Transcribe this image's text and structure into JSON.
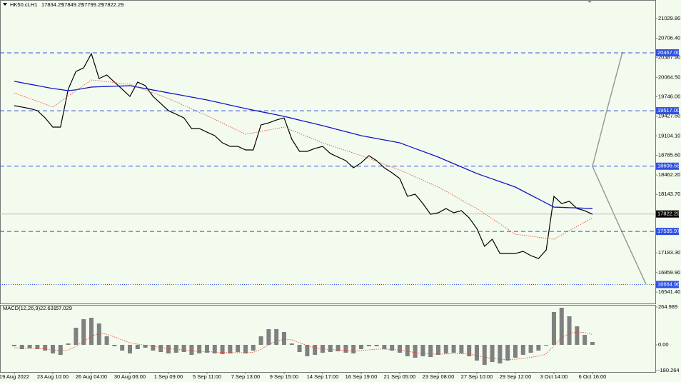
{
  "chart_data": [
    {
      "type": "line",
      "header": {
        "symbol": "HK50.cLH1",
        "open": 17834.29,
        "high": 17849.29,
        "low": 17799.29,
        "close": 17822.29
      },
      "categories": [
        "19 Aug 2022",
        null,
        null,
        null,
        null,
        "23 Aug 10:00",
        null,
        null,
        null,
        null,
        "26 Aug 04:00",
        null,
        null,
        null,
        null,
        "30 Aug 06:00",
        null,
        null,
        null,
        null,
        "1 Sep 09:00",
        null,
        null,
        null,
        null,
        "5 Sep 11:00",
        null,
        null,
        null,
        null,
        "7 Sep 13:00",
        null,
        null,
        null,
        null,
        "9 Sep 15:00",
        null,
        null,
        null,
        null,
        "14 Sep 17:00",
        null,
        null,
        null,
        null,
        "16 Sep 19:00",
        null,
        null,
        null,
        null,
        "21 Sep 05:00",
        null,
        null,
        null,
        null,
        "23 Sep 08:00",
        null,
        null,
        null,
        null,
        "27 Sep 10:00",
        null,
        null,
        null,
        null,
        "29 Sep 12:00",
        null,
        null,
        null,
        null,
        "3 Oct 14:00",
        null,
        null,
        null,
        null,
        "6 Oct 16:00"
      ],
      "xlim": [
        -1.85,
        83.15
      ],
      "series": [
        {
          "color": "#000000",
          "values": [
            19600,
            19577,
            19553,
            19518,
            19400,
            19248,
            19248,
            19870,
            20162,
            20221,
            20455,
            20045,
            20104,
            19986,
            19870,
            19752,
            19986,
            19928,
            19752,
            19635,
            19518,
            19459,
            19400,
            19225,
            19225,
            19166,
            19108,
            18990,
            18932,
            18932,
            18873,
            18873,
            19283,
            19318,
            19365,
            19400,
            19049,
            18850,
            18850,
            18897,
            18932,
            18815,
            18756,
            18698,
            18580,
            18663,
            18780,
            18698,
            18580,
            18498,
            18405,
            18112,
            18147,
            17994,
            17818,
            17842,
            17912,
            17842,
            17877,
            17760,
            17584,
            17291,
            17408,
            17174,
            17174,
            17174,
            17209,
            17139,
            17092,
            17232,
            18112,
            17994,
            18030,
            17912,
            17877,
            17818
          ]
        },
        {
          "color": "#1414c8",
          "values": [
            20000,
            19976,
            19952,
            19929,
            19905,
            19881,
            19865,
            19846,
            19860,
            19882,
            19905,
            19910,
            19914,
            19919,
            19923,
            19928,
            19904,
            19881,
            19857,
            19834,
            19810,
            19787,
            19764,
            19740,
            19717,
            19694,
            19666,
            19638,
            19609,
            19581,
            19553,
            19527,
            19501,
            19476,
            19450,
            19424,
            19394,
            19363,
            19333,
            19302,
            19272,
            19239,
            19206,
            19174,
            19141,
            19108,
            19084,
            19061,
            19037,
            19014,
            18990,
            18943,
            18896,
            18850,
            18803,
            18756,
            18702,
            18648,
            18595,
            18541,
            18487,
            18442,
            18398,
            18353,
            18309,
            18264,
            18198,
            18132,
            18067,
            18001,
            17935,
            17931,
            17926,
            17922,
            17917,
            17912
          ]
        },
        {
          "color": "#e04030",
          "dotted": true,
          "values": [
            19810,
            19763,
            19717,
            19670,
            19624,
            19577,
            19666,
            19755,
            19844,
            19933,
            20022,
            20008,
            19994,
            19979,
            19965,
            19951,
            19904,
            19857,
            19811,
            19764,
            19717,
            19661,
            19605,
            19548,
            19492,
            19436,
            19375,
            19314,
            19253,
            19192,
            19131,
            19154,
            19178,
            19201,
            19225,
            19248,
            19196,
            19145,
            19093,
            19042,
            18990,
            18948,
            18906,
            18864,
            18822,
            18780,
            18733,
            18686,
            18639,
            18592,
            18545,
            18489,
            18433,
            18376,
            18320,
            18264,
            18194,
            18123,
            18053,
            17982,
            17912,
            17828,
            17743,
            17659,
            17574,
            17490,
            17474,
            17457,
            17441,
            17424,
            17408,
            17478,
            17549,
            17619,
            17690,
            17760
          ]
        }
      ],
      "ylim": [
        16354,
        21334
      ],
      "yticks": [
        {
          "value": 21029.8,
          "label": "21029.80"
        },
        {
          "value": 20706.4,
          "label": "20706.40"
        },
        {
          "value": 20387.9,
          "label": "20387.90"
        },
        {
          "value": 20064.5,
          "label": "20064.50"
        },
        {
          "value": 19746,
          "label": "19746.00"
        },
        {
          "value": 19427.5,
          "label": "19427.50"
        },
        {
          "value": 19104.1,
          "label": "19104.10"
        },
        {
          "value": 18785.6,
          "label": "18785.60"
        },
        {
          "value": 18462.2,
          "label": "18462.20"
        },
        {
          "value": 18143.7,
          "label": "18143.70"
        },
        {
          "value": 17183.3,
          "label": "17183.30"
        },
        {
          "value": 16859.9,
          "label": "16859.90"
        },
        {
          "value": 16541.4,
          "label": "16541.40"
        }
      ],
      "levels": [
        {
          "value": 20467,
          "label": "20467.00"
        },
        {
          "value": 19517,
          "label": "19517.00"
        },
        {
          "value": 18606.58,
          "label": "18606.58"
        },
        {
          "value": 17535.97,
          "label": "17535.97"
        },
        {
          "value": 16664.96,
          "label": "16664.96"
        }
      ],
      "level_color": "#3050e0",
      "current": 17822.29
    },
    {
      "type": "bar",
      "header": {
        "name": "MACD(12,26,9)",
        "main": 22.631,
        "signal": 57.029
      },
      "values": [
        -10,
        -30,
        -25,
        -30,
        -40,
        -60,
        -70,
        10,
        120,
        180,
        190,
        150,
        60,
        -10,
        -40,
        -60,
        -30,
        -20,
        -40,
        -50,
        -60,
        -55,
        -50,
        -70,
        -60,
        -55,
        -60,
        -65,
        -60,
        -50,
        -60,
        -40,
        60,
        110,
        110,
        90,
        10,
        -50,
        -80,
        -70,
        -55,
        -50,
        -45,
        -55,
        -60,
        -30,
        -10,
        -10,
        -30,
        -40,
        -55,
        -80,
        -90,
        -80,
        -85,
        -70,
        -60,
        -55,
        -60,
        -80,
        -110,
        -140,
        -120,
        -130,
        -110,
        -90,
        -70,
        -55,
        -40,
        -5,
        230,
        260,
        200,
        130,
        70,
        20
      ],
      "signal": [
        -20,
        -22,
        -23,
        -25,
        -28,
        -35,
        -42,
        -35,
        -10,
        25,
        60,
        80,
        75,
        55,
        35,
        15,
        5,
        -2,
        -10,
        -18,
        -26,
        -32,
        -36,
        -42,
        -46,
        -48,
        -50,
        -53,
        -55,
        -54,
        -55,
        -52,
        -30,
        0,
        25,
        40,
        35,
        15,
        -5,
        -20,
        -28,
        -33,
        -36,
        -40,
        -44,
        -41,
        -35,
        -30,
        -30,
        -32,
        -37,
        -45,
        -54,
        -59,
        -64,
        -65,
        -64,
        -62,
        -61,
        -65,
        -74,
        -87,
        -94,
        -101,
        -103,
        -101,
        -95,
        -87,
        -78,
        -63,
        -5,
        50,
        80,
        90,
        86,
        73
      ],
      "color": "#808080",
      "signal_color": "#e04030",
      "ylim": [
        -190,
        280
      ],
      "yticks": [
        264.989,
        {
          "value": 0,
          "label": "0.00"
        },
        -180.264
      ]
    }
  ]
}
